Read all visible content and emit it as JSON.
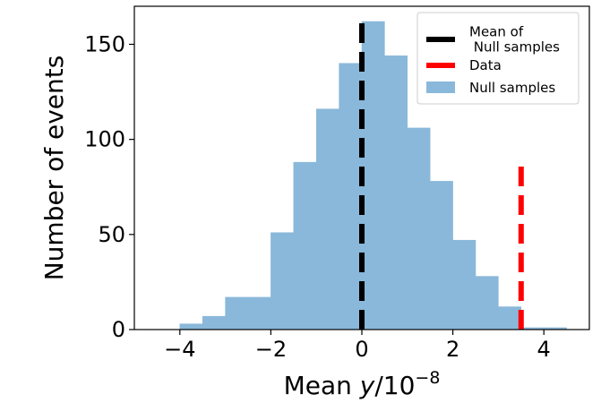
{
  "chart_data": {
    "type": "bar",
    "xlabel": "Mean y/10⁻⁸",
    "xlabel_parts": {
      "main": "Mean ",
      "var": "y",
      "unit": "/10",
      "exp": "−8"
    },
    "ylabel": "Number of events",
    "xlim": [
      -5,
      5
    ],
    "ylim": [
      0,
      170
    ],
    "xticks": [
      -4,
      -2,
      0,
      2,
      4
    ],
    "xtick_labels": [
      "−4",
      "−2",
      "0",
      "2",
      "4"
    ],
    "yticks": [
      0,
      50,
      100,
      150
    ],
    "ytick_labels": [
      "0",
      "50",
      "100",
      "150"
    ],
    "grid": false,
    "legend_position": "top-right",
    "bins": [
      {
        "x0": -4.0,
        "x1": -3.5,
        "count": 3
      },
      {
        "x0": -3.5,
        "x1": -3.0,
        "count": 7
      },
      {
        "x0": -3.0,
        "x1": -2.5,
        "count": 17
      },
      {
        "x0": -2.5,
        "x1": -2.0,
        "count": 17
      },
      {
        "x0": -2.0,
        "x1": -1.5,
        "count": 51
      },
      {
        "x0": -1.5,
        "x1": -1.0,
        "count": 88
      },
      {
        "x0": -1.0,
        "x1": -0.5,
        "count": 116
      },
      {
        "x0": -0.5,
        "x1": 0.0,
        "count": 140
      },
      {
        "x0": 0.0,
        "x1": 0.5,
        "count": 162
      },
      {
        "x0": 0.5,
        "x1": 1.0,
        "count": 144
      },
      {
        "x0": 1.0,
        "x1": 1.5,
        "count": 106
      },
      {
        "x0": 1.5,
        "x1": 2.0,
        "count": 78
      },
      {
        "x0": 2.0,
        "x1": 2.5,
        "count": 47
      },
      {
        "x0": 2.5,
        "x1": 3.0,
        "count": 28
      },
      {
        "x0": 3.0,
        "x1": 3.5,
        "count": 12
      },
      {
        "x0": 3.5,
        "x1": 4.0,
        "count": 1
      },
      {
        "x0": 4.0,
        "x1": 4.5,
        "count": 1
      }
    ],
    "vlines": [
      {
        "name": "Mean of Null samples",
        "x": 0.0,
        "ymax": 162,
        "color": "#000000",
        "style": "dashed"
      },
      {
        "name": "Data",
        "x": 3.5,
        "ymax": 87,
        "color": "#ff0000",
        "style": "dashed"
      }
    ],
    "legend": [
      {
        "label_lines": [
          "Mean of",
          " Null samples"
        ],
        "kind": "line",
        "color": "#000000"
      },
      {
        "label_lines": [
          "Data"
        ],
        "kind": "line",
        "color": "#ff0000"
      },
      {
        "label_lines": [
          "Null samples"
        ],
        "kind": "patch",
        "color": "#8ab8da"
      }
    ],
    "colors": {
      "hist": "#8ab8da",
      "axis": "#000000"
    }
  }
}
